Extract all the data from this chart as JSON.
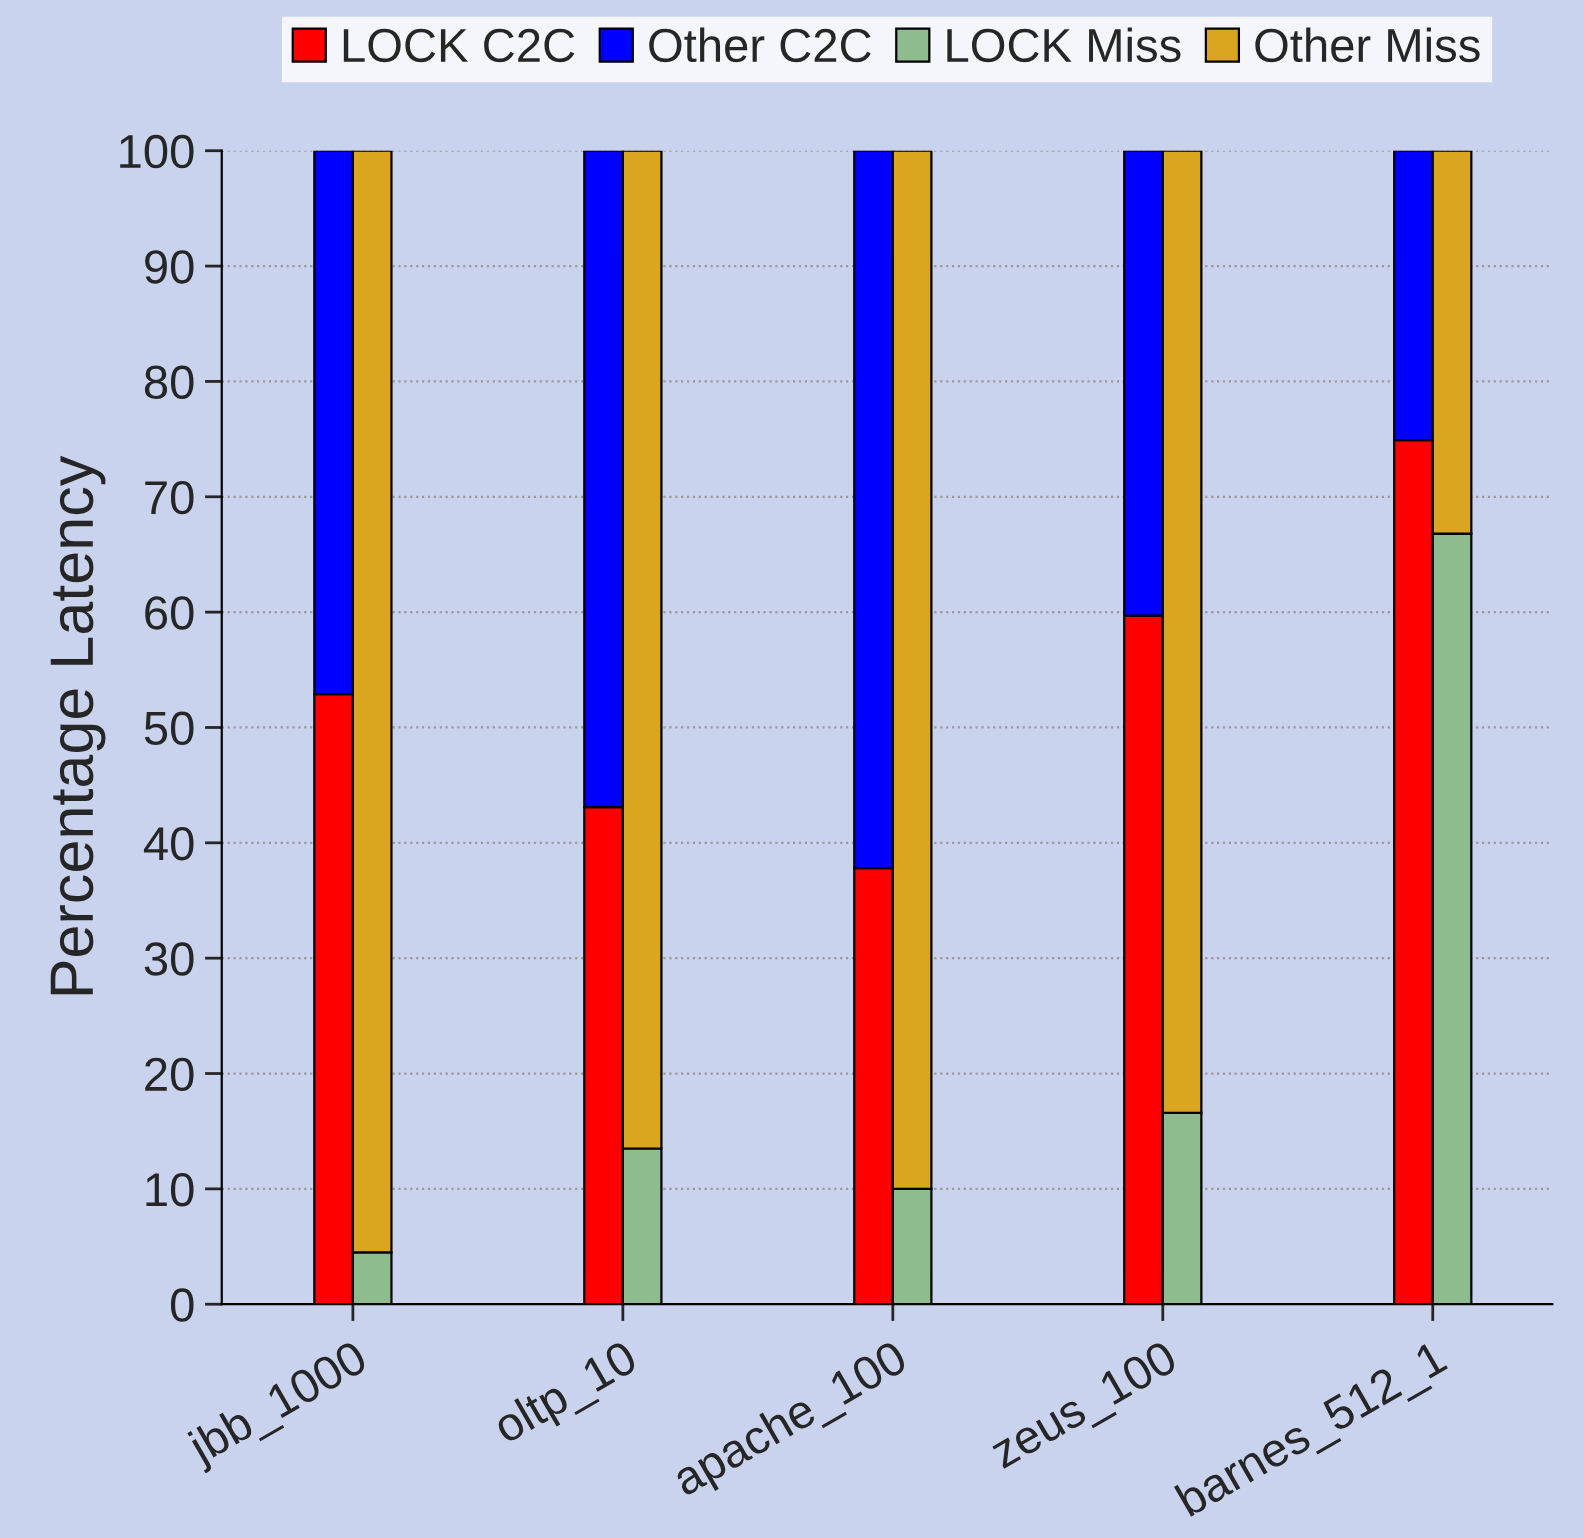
{
  "chart_data": {
    "type": "bar",
    "stacked": true,
    "ylabel": "Percentage Latency",
    "categories": [
      null,
      "jbb_1000",
      null,
      null,
      null,
      null,
      null,
      null,
      "oltp_10",
      null,
      null,
      null,
      null,
      null,
      null,
      "apache_100",
      null,
      null,
      null,
      null,
      null,
      null,
      "zeus_100",
      null,
      null,
      null,
      null,
      null,
      null,
      "barnes_512_1"
    ],
    "series": [
      {
        "name": "LOCK C2C",
        "color": "#ff0000",
        "values": [
          52.9,
          null,
          null,
          null,
          null,
          null,
          null,
          43.1,
          null,
          null,
          null,
          null,
          null,
          null,
          37.8,
          null,
          null,
          null,
          null,
          null,
          null,
          59.7,
          null,
          null,
          null,
          null,
          null,
          null,
          74.9,
          null
        ]
      },
      {
        "name": "Other C2C",
        "color": "#0000ff",
        "values": [
          47.1,
          null,
          null,
          null,
          null,
          null,
          null,
          56.9,
          null,
          null,
          null,
          null,
          null,
          null,
          62.2,
          null,
          null,
          null,
          null,
          null,
          null,
          40.3,
          null,
          null,
          null,
          null,
          null,
          null,
          25.1,
          null
        ]
      },
      {
        "name": "LOCK Miss",
        "color": "#8fbc8f",
        "values": [
          null,
          4.5,
          null,
          null,
          null,
          null,
          null,
          null,
          13.5,
          null,
          null,
          null,
          null,
          null,
          null,
          10,
          null,
          null,
          null,
          null,
          null,
          null,
          16.6,
          null,
          null,
          null,
          null,
          null,
          null,
          66.8
        ]
      },
      {
        "name": "Other Miss",
        "color": "#daa520",
        "values": [
          null,
          95.5,
          null,
          null,
          null,
          null,
          null,
          null,
          86.5,
          null,
          null,
          null,
          null,
          null,
          null,
          90,
          null,
          null,
          null,
          null,
          null,
          null,
          83.4,
          null,
          null,
          null,
          null,
          null,
          null,
          33.2
        ]
      }
    ],
    "ylim": [
      0,
      100
    ],
    "yticks": [
      0,
      10,
      20,
      30,
      40,
      50,
      60,
      70,
      80,
      90,
      100
    ],
    "grid": "y",
    "legend": "top"
  }
}
